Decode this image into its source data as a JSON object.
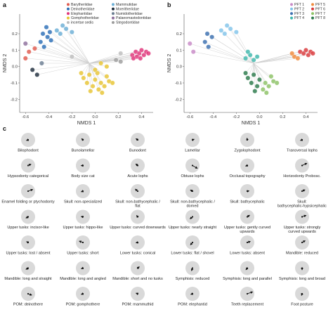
{
  "panels": {
    "a": "a",
    "b": "b",
    "c": "c"
  },
  "chart_data": [
    {
      "panel": "a",
      "type": "scatter",
      "title": "",
      "xlabel": "NMDS 1",
      "ylabel": "NMDS 2",
      "xlim": [
        -0.65,
        0.5
      ],
      "ylim": [
        -0.28,
        0.32
      ],
      "xticks": [
        -0.6,
        -0.4,
        -0.2,
        0.0,
        0.2,
        0.4
      ],
      "xtick_labels": [
        "-0.6",
        "-0.4",
        "-0.2",
        "0.0",
        "0.2",
        "0.4"
      ],
      "yticks": [
        -0.2,
        -0.1,
        0.0,
        0.1,
        0.2
      ],
      "ytick_labels": [
        "-0.2",
        "-0.1",
        "0.0",
        "0.1",
        "0.2"
      ],
      "grid": false,
      "legend_position": "top-right",
      "series": [
        {
          "name": "Barytheriidae",
          "color": "#e05a4e",
          "points": [
            [
              -0.57,
              0.09
            ],
            [
              -0.6,
              0.05
            ],
            [
              -0.52,
              0.11
            ]
          ]
        },
        {
          "name": "Deinotheriidae",
          "color": "#2c6fb7",
          "points": [
            [
              -0.44,
              0.12
            ],
            [
              -0.47,
              0.15
            ],
            [
              -0.41,
              0.18
            ],
            [
              -0.38,
              0.16
            ],
            [
              -0.45,
              0.2
            ],
            [
              -0.39,
              0.21
            ],
            [
              -0.42,
              0.24
            ]
          ]
        },
        {
          "name": "Elephantidae",
          "color": "#e0357a",
          "points": [
            [
              0.32,
              0.07
            ],
            [
              0.35,
              0.09
            ],
            [
              0.38,
              0.08
            ],
            [
              0.4,
              0.1
            ],
            [
              0.36,
              0.06
            ],
            [
              0.42,
              0.07
            ],
            [
              0.44,
              0.09
            ],
            [
              0.39,
              0.05
            ],
            [
              0.33,
              0.05
            ],
            [
              0.46,
              0.08
            ]
          ]
        },
        {
          "name": "Gomphotheriidae",
          "color": "#e8c533",
          "points": [
            [
              -0.05,
              -0.05
            ],
            [
              0.0,
              -0.08
            ],
            [
              0.05,
              -0.1
            ],
            [
              -0.1,
              -0.07
            ],
            [
              0.1,
              -0.06
            ],
            [
              -0.02,
              -0.12
            ],
            [
              0.03,
              -0.14
            ],
            [
              -0.07,
              -0.1
            ],
            [
              0.08,
              -0.12
            ],
            [
              0.12,
              -0.09
            ],
            [
              0.02,
              -0.04
            ],
            [
              -0.04,
              -0.15
            ],
            [
              0.06,
              -0.16
            ],
            [
              0.15,
              -0.1
            ],
            [
              -0.12,
              -0.04
            ],
            [
              0.0,
              -0.02
            ],
            [
              0.1,
              0.0
            ],
            [
              0.05,
              0.02
            ]
          ]
        },
        {
          "name": "incertae sedis",
          "color": "#bdbdbd",
          "points": [
            [
              -0.2,
              0.06
            ],
            [
              0.22,
              0.08
            ]
          ]
        },
        {
          "name": "Mammutidae",
          "color": "#6bafd6",
          "points": [
            [
              -0.3,
              0.2
            ],
            [
              -0.25,
              0.23
            ],
            [
              -0.2,
              0.21
            ],
            [
              -0.28,
              0.25
            ],
            [
              -0.33,
              0.22
            ]
          ]
        },
        {
          "name": "Moeritheriidae",
          "color": "#1f2d3d",
          "points": [
            [
              -0.54,
              -0.02
            ],
            [
              -0.5,
              -0.05
            ]
          ]
        },
        {
          "name": "Numidotheriidae",
          "color": "#6a7d91",
          "points": [
            [
              -0.46,
              0.02
            ]
          ]
        },
        {
          "name": "Palaeomastodontidae",
          "color": "#8e6f9c",
          "points": [
            [
              -0.6,
              0.14
            ]
          ]
        },
        {
          "name": "Stegodontidae",
          "color": "#9e9e9e",
          "points": [
            [
              0.18,
              0.04
            ],
            [
              0.22,
              0.03
            ]
          ]
        }
      ]
    },
    {
      "panel": "b",
      "type": "scatter",
      "title": "",
      "xlabel": "NMDS 1",
      "ylabel": "NMDS 2",
      "xlim": [
        -0.65,
        0.5
      ],
      "ylim": [
        -0.28,
        0.32
      ],
      "xticks": [
        -0.6,
        -0.4,
        -0.2,
        0.0,
        0.2,
        0.4
      ],
      "xtick_labels": [
        "-0.6",
        "-0.4",
        "-0.2",
        "0.0",
        "0.2",
        "0.4"
      ],
      "yticks": [
        -0.2,
        -0.1,
        0.0,
        0.1,
        0.2
      ],
      "ytick_labels": [
        "-0.2",
        "-0.1",
        "0.0",
        "0.1",
        "0.2"
      ],
      "grid": false,
      "legend_position": "top-right",
      "series": [
        {
          "name": "PFT 1",
          "color": "#c88ac7",
          "points": [
            [
              -0.6,
              0.14
            ],
            [
              -0.57,
              0.09
            ]
          ]
        },
        {
          "name": "PFT 2",
          "color": "#82c4ea",
          "points": [
            [
              -0.3,
              0.2
            ],
            [
              -0.25,
              0.23
            ],
            [
              -0.2,
              0.21
            ],
            [
              -0.28,
              0.25
            ],
            [
              -0.33,
              0.22
            ]
          ]
        },
        {
          "name": "PFT 3",
          "color": "#3b6fb0",
          "points": [
            [
              -0.44,
              0.12
            ],
            [
              -0.47,
              0.15
            ],
            [
              -0.41,
              0.18
            ],
            [
              -0.45,
              0.2
            ]
          ]
        },
        {
          "name": "PFT 4",
          "color": "#3fb8ad",
          "points": [
            [
              -0.12,
              0.05
            ],
            [
              -0.08,
              0.07
            ],
            [
              -0.05,
              0.04
            ],
            [
              -0.1,
              0.09
            ],
            [
              -0.02,
              0.06
            ]
          ]
        },
        {
          "name": "PFT 5",
          "color": "#f08a3c",
          "points": [
            [
              0.3,
              0.06
            ],
            [
              0.33,
              0.05
            ],
            [
              0.28,
              0.08
            ]
          ]
        },
        {
          "name": "PFT 6",
          "color": "#d9383a",
          "points": [
            [
              0.35,
              0.09
            ],
            [
              0.38,
              0.08
            ],
            [
              0.4,
              0.1
            ],
            [
              0.42,
              0.07
            ],
            [
              0.44,
              0.09
            ],
            [
              0.46,
              0.08
            ]
          ]
        },
        {
          "name": "PFT 7",
          "color": "#8cc265",
          "points": [
            [
              0.05,
              -0.1
            ],
            [
              0.1,
              -0.06
            ],
            [
              0.03,
              -0.14
            ],
            [
              0.08,
              -0.12
            ],
            [
              0.12,
              -0.09
            ],
            [
              0.06,
              -0.16
            ],
            [
              0.15,
              -0.1
            ]
          ]
        },
        {
          "name": "PFT 8",
          "color": "#2b7a4b",
          "points": [
            [
              -0.05,
              -0.05
            ],
            [
              0.0,
              -0.08
            ],
            [
              -0.1,
              -0.07
            ],
            [
              -0.02,
              -0.12
            ],
            [
              -0.07,
              -0.1
            ],
            [
              -0.04,
              -0.15
            ],
            [
              -0.12,
              -0.04
            ]
          ]
        }
      ]
    },
    {
      "panel": "c",
      "type": "other",
      "title": "",
      "traits": [
        {
          "label": "Bilophodont",
          "angle": 200,
          "len": 0.25
        },
        {
          "label": "Bunolamellar",
          "angle": 135,
          "len": 0.2
        },
        {
          "label": "Bunodont",
          "angle": 145,
          "len": 0.3
        },
        {
          "label": "Lamellar",
          "angle": 20,
          "len": 0.15
        },
        {
          "label": "Zygolophodont",
          "angle": 100,
          "len": 0.1
        },
        {
          "label": "Transversal lophs",
          "angle": 200,
          "len": 0.15
        },
        {
          "label": "Hypsodonty categorical",
          "angle": 25,
          "len": 0.45
        },
        {
          "label": "Body size cat",
          "angle": 185,
          "len": 0.15
        },
        {
          "label": "Acute lophs",
          "angle": 140,
          "len": 0.35
        },
        {
          "label": "Obtuse lophs",
          "angle": 330,
          "len": 0.8
        },
        {
          "label": "Occlusal topography",
          "angle": 200,
          "len": 0.15
        },
        {
          "label": "Horizodonty Probosc.",
          "angle": 25,
          "len": 0.75
        },
        {
          "label": "Enamel folding or ptychodonty",
          "angle": 20,
          "len": 0.7
        },
        {
          "label": "Skull: non-specialized",
          "angle": 200,
          "len": 0.15
        },
        {
          "label": "Skull: non-bathycephalic / flat",
          "angle": 140,
          "len": 0.45
        },
        {
          "label": "Skull: non-bathycephalic / domed",
          "angle": 150,
          "len": 0.35
        },
        {
          "label": "Skull: bathycephalic",
          "angle": 10,
          "len": 0.15
        },
        {
          "label": "Skull: bathycephalic-hypsicephalic",
          "angle": 25,
          "len": 0.45
        },
        {
          "label": "Upper tusks: incisor-like",
          "angle": 210,
          "len": 0.35
        },
        {
          "label": "Upper tusks: hippo-like",
          "angle": 170,
          "len": 0.15
        },
        {
          "label": "Upper tusks: curved downwards",
          "angle": 130,
          "len": 0.15
        },
        {
          "label": "Upper tusks: nearly straight",
          "angle": 220,
          "len": 0.45
        },
        {
          "label": "Upper tusks: gently curved upwards",
          "angle": 35,
          "len": 0.4
        },
        {
          "label": "Upper tusks: strongly curved upwards",
          "angle": 20,
          "len": 0.6
        },
        {
          "label": "Upper tusks: lost / absent",
          "angle": 150,
          "len": 0.25
        },
        {
          "label": "Upper tusks: short",
          "angle": 160,
          "len": 0.55
        },
        {
          "label": "Lower tusks: conical",
          "angle": 190,
          "len": 0.15
        },
        {
          "label": "Lower tusks: flat / shovel",
          "angle": 230,
          "len": 0.45
        },
        {
          "label": "Lower tusks: absent",
          "angle": 20,
          "len": 0.45
        },
        {
          "label": "Mandible: reduced",
          "angle": 30,
          "len": 0.5
        },
        {
          "label": "Mandible: long and straight",
          "angle": 210,
          "len": 0.35
        },
        {
          "label": "Mandible: long and angled",
          "angle": 200,
          "len": 0.15
        },
        {
          "label": "Mandible: short and no tusks",
          "angle": 40,
          "len": 0.3
        },
        {
          "label": "Symphisis: reduced",
          "angle": 250,
          "len": 0.4
        },
        {
          "label": "Symphisis: long and parallel",
          "angle": 230,
          "len": 0.3
        },
        {
          "label": "Symphisis: long and broad",
          "angle": 270,
          "len": 0.25
        },
        {
          "label": "POM: deinothere",
          "angle": 340,
          "len": 0.55
        },
        {
          "label": "POM: gomphothere",
          "angle": 200,
          "len": 0.2
        },
        {
          "label": "POM: mammuthid",
          "angle": 160,
          "len": 0.2
        },
        {
          "label": "POM: elephantid",
          "angle": 200,
          "len": 0.2
        },
        {
          "label": "Teeth replacement",
          "angle": 20,
          "len": 0.8
        },
        {
          "label": "Foot posture",
          "angle": 250,
          "len": 0.15
        }
      ]
    }
  ]
}
